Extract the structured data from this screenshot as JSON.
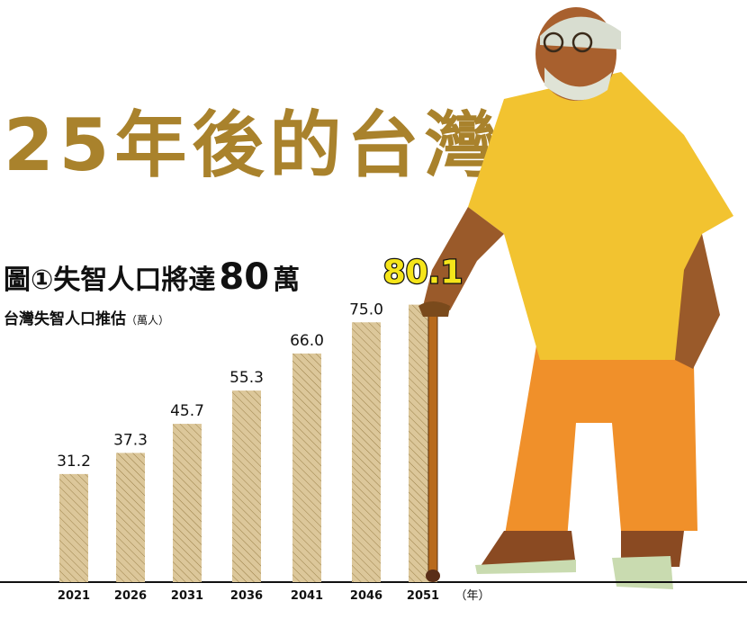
{
  "title": "25年後的台灣",
  "subhead": {
    "prefix": "圖①失智人口將達",
    "number": "80",
    "suffix": "萬"
  },
  "caption": {
    "text": "台灣失智人口推估",
    "unit": "（萬人）"
  },
  "chart_data": {
    "type": "bar",
    "title": "台灣失智人口推估",
    "ylabel": "萬人",
    "xlabel": "（年）",
    "categories": [
      "2021",
      "2026",
      "2031",
      "2036",
      "2041",
      "2046",
      "2051"
    ],
    "values": [
      31.2,
      37.3,
      45.7,
      55.3,
      66.0,
      75.0,
      80.1
    ],
    "value_labels": [
      "31.2",
      "37.3",
      "45.7",
      "55.3",
      "66.0",
      "75.0",
      "80.1"
    ],
    "ylim": [
      0,
      85
    ],
    "grid": false,
    "colors": {
      "bar": "#dcc79a",
      "hatch": "#9a8048",
      "highlight_label": "#f5e51a",
      "title": "#a9822c"
    }
  }
}
